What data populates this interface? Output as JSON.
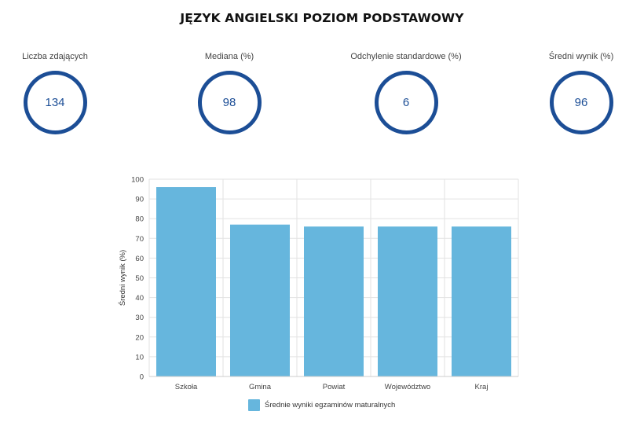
{
  "page": {
    "title": "JĘZYK ANGIELSKI POZIOM PODSTAWOWY"
  },
  "stats": [
    {
      "label": "Liczba zdających",
      "value": "134"
    },
    {
      "label": "Mediana (%)",
      "value": "98"
    },
    {
      "label": "Odchylenie standardowe (%)",
      "value": "6"
    },
    {
      "label": "Średni wynik (%)",
      "value": "96"
    }
  ],
  "colors": {
    "accent": "#1c4e96",
    "bar": "#66b6dd",
    "grid": "#e2e2e2"
  },
  "chart_data": {
    "type": "bar",
    "categories": [
      "Szkoła",
      "Gmina",
      "Powiat",
      "Województwo",
      "Kraj"
    ],
    "series": [
      {
        "name": "Średnie wyniki egzaminów maturalnych",
        "values": [
          96,
          77,
          76,
          76,
          76
        ]
      }
    ],
    "ylabel": "Średni wynik (%)",
    "xlabel": "",
    "ylim": [
      0,
      100
    ],
    "yticks": [
      0,
      10,
      20,
      30,
      40,
      50,
      60,
      70,
      80,
      90,
      100
    ],
    "grid": true,
    "legend_position": "bottom"
  }
}
